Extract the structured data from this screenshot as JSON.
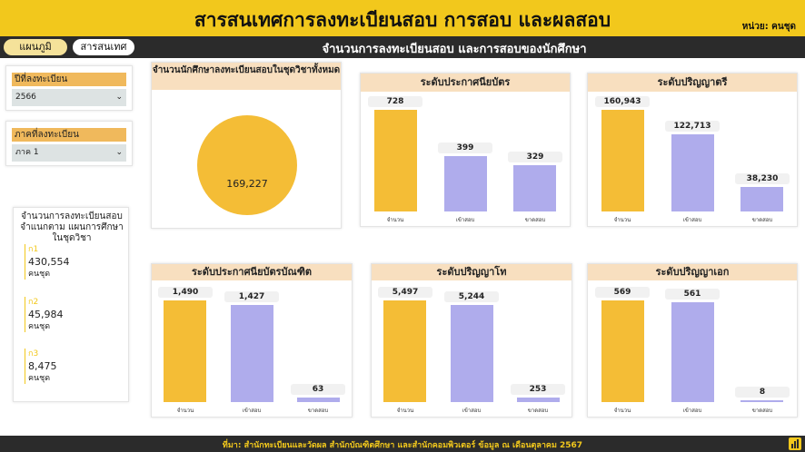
{
  "header": {
    "title": "สารสนเทศการลงทะเบียนสอบ การสอบ และผลสอบ",
    "unit": "หน่วย: คนชุด"
  },
  "nav": {
    "tab_plan": "แผนภูมิ",
    "tab_info": "สารสนเทศ",
    "subtitle": "จำนวนการลงทะเบียนสอบ และการสอบของนักศึกษา"
  },
  "colors": {
    "accent": "#f2c81c",
    "bar_registered": "#f4bd36",
    "bar_attended": "#afacec",
    "panel_title_bg": "#f8dfbf"
  },
  "slicers": [
    {
      "label": "ปีที่ลงทะเบียน",
      "value": "2566"
    },
    {
      "label": "ภาคที่ลงทะเบียน",
      "value": "ภาค 1"
    }
  ],
  "kpi": {
    "title": "จำนวนการลงทะเบียนสอบ จำแนกตาม แผนการศึกษาในชุดวิชา",
    "items": [
      {
        "group": "ก1",
        "value": "430,554",
        "unit": "คนชุด"
      },
      {
        "group": "ก2",
        "value": "45,984",
        "unit": "คนชุด"
      },
      {
        "group": "ก3",
        "value": "8,475",
        "unit": "คนชุด"
      }
    ]
  },
  "total": {
    "title": "จำนวนนักศึกษาลงทะเบียนสอบในชุดวิชาทั้งหมด",
    "value": "169,227"
  },
  "categories": [
    "จำนวน",
    "เข้าสอบ",
    "ขาดสอบ"
  ],
  "chart_data": [
    {
      "type": "bar",
      "title": "ระดับประกาศนียบัตร",
      "categories": [
        "จำนวน",
        "เข้าสอบ",
        "ขาดสอบ"
      ],
      "values": [
        728,
        399,
        329
      ],
      "value_labels": [
        "728",
        "399",
        "329"
      ]
    },
    {
      "type": "bar",
      "title": "ระดับปริญญาตรี",
      "categories": [
        "จำนวน",
        "เข้าสอบ",
        "ขาดสอบ"
      ],
      "values": [
        160943,
        122713,
        38230
      ],
      "value_labels": [
        "160,943",
        "122,713",
        "38,230"
      ]
    },
    {
      "type": "bar",
      "title": "ระดับประกาศนียบัตรบัณฑิต",
      "categories": [
        "จำนวน",
        "เข้าสอบ",
        "ขาดสอบ"
      ],
      "values": [
        1490,
        1427,
        63
      ],
      "value_labels": [
        "1,490",
        "1,427",
        "63"
      ]
    },
    {
      "type": "bar",
      "title": "ระดับปริญญาโท",
      "categories": [
        "จำนวน",
        "เข้าสอบ",
        "ขาดสอบ"
      ],
      "values": [
        5497,
        5244,
        253
      ],
      "value_labels": [
        "5,497",
        "5,244",
        "253"
      ]
    },
    {
      "type": "bar",
      "title": "ระดับปริญญาเอก",
      "categories": [
        "จำนวน",
        "เข้าสอบ",
        "ขาดสอบ"
      ],
      "values": [
        569,
        561,
        8
      ],
      "value_labels": [
        "569",
        "561",
        "8"
      ]
    }
  ],
  "footer": {
    "source": "ที่มา: สำนักทะเบียนและวัดผล สำนักบัณฑิตศึกษา และสำนักคอมพิวเตอร์ ข้อมูล ณ เดือนตุลาคม 2567"
  }
}
